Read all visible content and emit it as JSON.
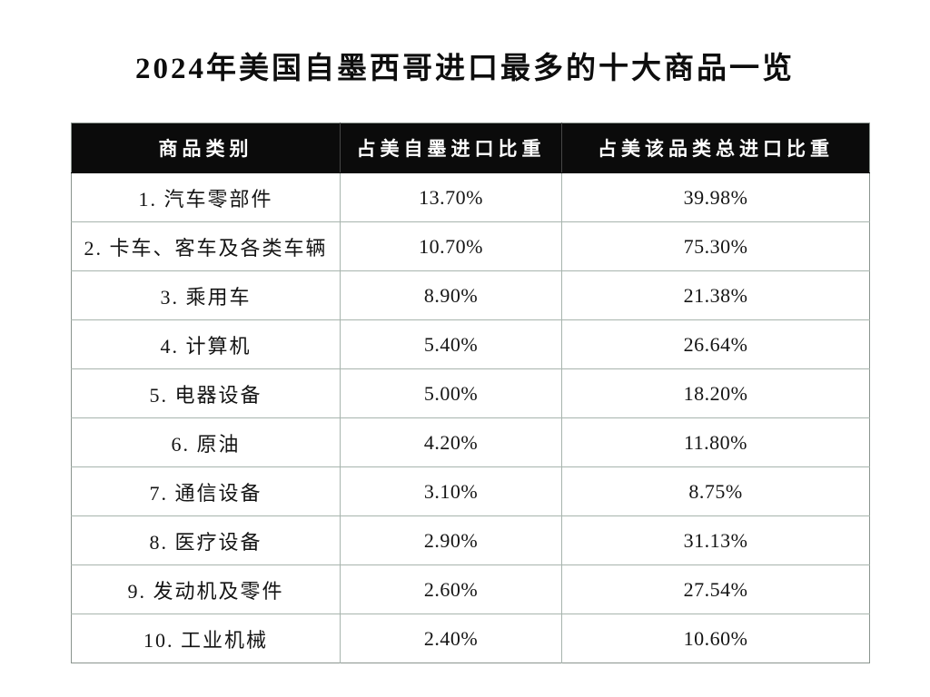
{
  "title": "2024年美国自墨西哥进口最多的十大商品一览",
  "table": {
    "headers": [
      "商品类别",
      "占美自墨进口比重",
      "占美该品类总进口比重"
    ],
    "rows": [
      [
        "1. 汽车零部件",
        "13.70%",
        "39.98%"
      ],
      [
        "2. 卡车、客车及各类车辆",
        "10.70%",
        "75.30%"
      ],
      [
        "3. 乘用车",
        "8.90%",
        "21.38%"
      ],
      [
        "4. 计算机",
        "5.40%",
        "26.64%"
      ],
      [
        "5. 电器设备",
        "5.00%",
        "18.20%"
      ],
      [
        "6. 原油",
        "4.20%",
        "11.80%"
      ],
      [
        "7. 通信设备",
        "3.10%",
        "8.75%"
      ],
      [
        "8. 医疗设备",
        "2.90%",
        "31.13%"
      ],
      [
        "9. 发动机及零件",
        "2.60%",
        "27.54%"
      ],
      [
        "10. 工业机械",
        "2.40%",
        "10.60%"
      ]
    ]
  },
  "colors": {
    "background": "#ffffff",
    "header_bg": "#0b0b0b",
    "header_text": "#ffffff",
    "body_text": "#141414",
    "grid_line": "#a7b4ad",
    "outer_border": "#8a948e"
  },
  "chart_data": {
    "type": "table",
    "title": "2024年美国自墨西哥进口最多的十大商品一览",
    "columns": [
      "商品类别",
      "占美自墨进口比重",
      "占美该品类总进口比重"
    ],
    "categories": [
      "汽车零部件",
      "卡车、客车及各类车辆",
      "乘用车",
      "计算机",
      "电器设备",
      "原油",
      "通信设备",
      "医疗设备",
      "发动机及零件",
      "工业机械"
    ],
    "series": [
      {
        "name": "占美自墨进口比重(%)",
        "values": [
          13.7,
          10.7,
          8.9,
          5.4,
          5.0,
          4.2,
          3.1,
          2.9,
          2.6,
          2.4
        ]
      },
      {
        "name": "占美该品类总进口比重(%)",
        "values": [
          39.98,
          75.3,
          21.38,
          26.64,
          18.2,
          11.8,
          8.75,
          31.13,
          27.54,
          10.6
        ]
      }
    ]
  }
}
